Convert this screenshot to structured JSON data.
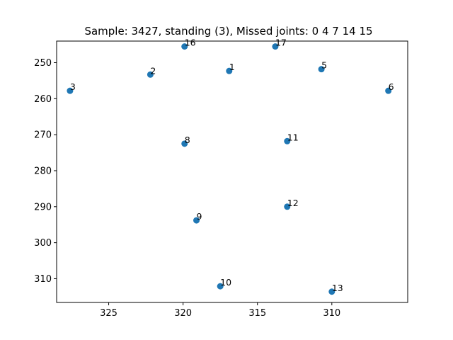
{
  "chart_data": {
    "type": "scatter",
    "title": "Sample: 3427, standing (3), Missed joints: 0  4  7  14  15",
    "xlabel": "",
    "ylabel": "",
    "xlim": [
      328.5,
      304.9
    ],
    "ylim": [
      316.6,
      244.0
    ],
    "x_reversed": true,
    "y_reversed": true,
    "x_ticks": [
      325,
      320,
      315,
      310
    ],
    "y_ticks": [
      250,
      260,
      270,
      280,
      290,
      300,
      310
    ],
    "grid": false,
    "legend": "none",
    "marker_color": "#1f77b4",
    "points": [
      {
        "label": "1",
        "x": 316.9,
        "y": 252.3
      },
      {
        "label": "2",
        "x": 322.2,
        "y": 253.3
      },
      {
        "label": "3",
        "x": 327.6,
        "y": 257.8
      },
      {
        "label": "5",
        "x": 310.7,
        "y": 251.8
      },
      {
        "label": "6",
        "x": 306.2,
        "y": 257.8
      },
      {
        "label": "8",
        "x": 319.9,
        "y": 272.5
      },
      {
        "label": "9",
        "x": 319.1,
        "y": 293.8
      },
      {
        "label": "10",
        "x": 317.5,
        "y": 312.1
      },
      {
        "label": "11",
        "x": 313.0,
        "y": 271.8
      },
      {
        "label": "12",
        "x": 313.0,
        "y": 290.0
      },
      {
        "label": "13",
        "x": 310.0,
        "y": 313.6
      },
      {
        "label": "16",
        "x": 319.9,
        "y": 245.5
      },
      {
        "label": "17",
        "x": 313.8,
        "y": 245.5
      }
    ]
  }
}
